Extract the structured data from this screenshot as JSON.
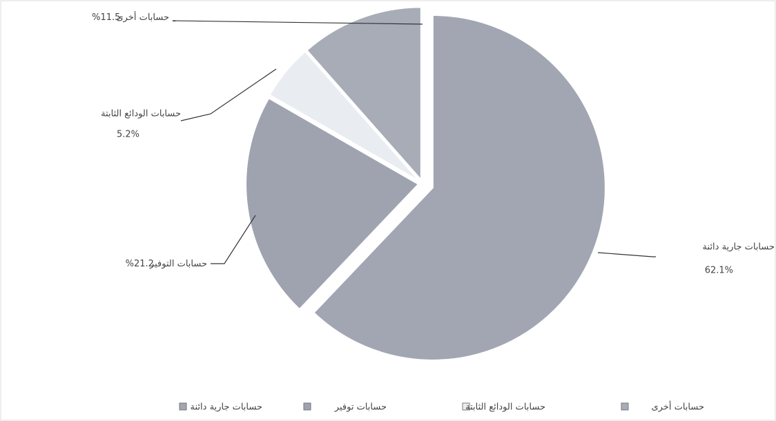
{
  "chart_data": {
    "type": "pie",
    "categories": [
      "حسابات جارية دائنة",
      "حسابات توفير",
      "حسابات الودائع الثابتة",
      "حسابات أخرى"
    ],
    "label_names": [
      "حسابات جارية دائنة",
      "حسابات التوفير",
      "حسابات الودائع الثابتة",
      "حسابات أخرى"
    ],
    "values": [
      62.1,
      21.2,
      5.2,
      11.5
    ],
    "value_labels": [
      "62.1%",
      "21.2%",
      "5.2%",
      "11.5%"
    ],
    "colors": [
      "#a2a6b2",
      "#9fa3b0",
      "#e9ecf1",
      "#a8acb7"
    ],
    "legend": "bottom"
  }
}
